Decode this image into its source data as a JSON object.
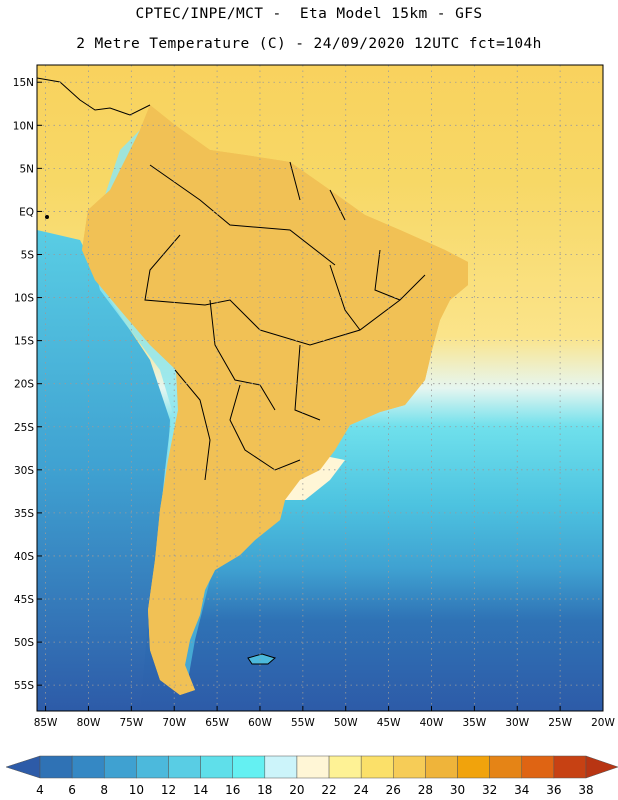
{
  "header": {
    "line1": "CPTEC/INPE/MCT -  Eta Model 15km - GFS",
    "line2": "2 Metre Temperature (C) - 24/09/2020 12UTC fct=104h"
  },
  "map": {
    "lat_labels": [
      "15N",
      "10N",
      "5N",
      "EQ",
      "5S",
      "10S",
      "15S",
      "20S",
      "25S",
      "30S",
      "35S",
      "40S",
      "45S",
      "50S",
      "55S"
    ],
    "lat_values": [
      15,
      10,
      5,
      0,
      -5,
      -10,
      -15,
      -20,
      -25,
      -30,
      -35,
      -40,
      -45,
      -50,
      -55
    ],
    "lon_labels": [
      "85W",
      "80W",
      "75W",
      "70W",
      "65W",
      "60W",
      "55W",
      "50W",
      "45W",
      "40W",
      "35W",
      "30W",
      "25W",
      "20W"
    ],
    "lon_values": [
      -85,
      -80,
      -75,
      -70,
      -65,
      -60,
      -55,
      -50,
      -45,
      -40,
      -35,
      -30,
      -25,
      -20
    ],
    "extent": {
      "lon_min": -86,
      "lon_max": -20,
      "lat_min": -58,
      "lat_max": 17
    },
    "ocean_color": "#f8d868",
    "land_color": "#d97a1e"
  },
  "colorbar": {
    "labels": [
      "4",
      "6",
      "8",
      "10",
      "12",
      "14",
      "16",
      "18",
      "20",
      "22",
      "24",
      "26",
      "28",
      "30",
      "32",
      "34",
      "36",
      "38"
    ],
    "colors": [
      "#2d5ba8",
      "#2f72b5",
      "#3588c4",
      "#3fa1d1",
      "#4cb9dc",
      "#59cde4",
      "#5fdfea",
      "#64f0f2",
      "#ccf4fa",
      "#fff6d6",
      "#fef295",
      "#fbe069",
      "#f6cc57",
      "#efb43a",
      "#f1a30c",
      "#e58416",
      "#df6413",
      "#c74113",
      "#b83513"
    ]
  }
}
